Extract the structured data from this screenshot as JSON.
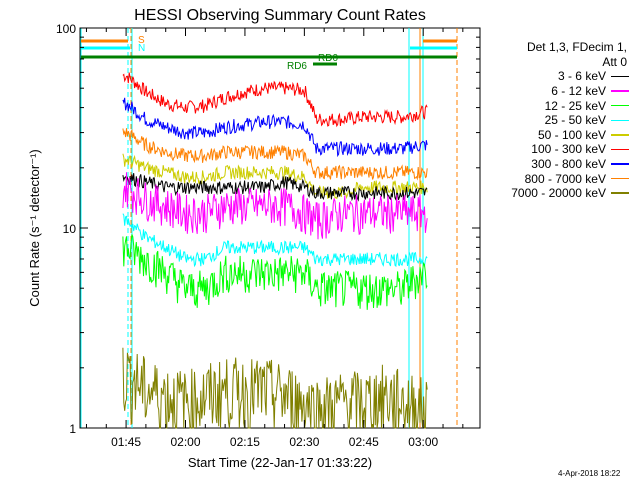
{
  "chart_data": {
    "type": "line",
    "title": "HESSI Observing Summary Count Rates",
    "xlabel": "Start Time (22-Jan-17 01:33:22)",
    "ylabel": "Count Rate (s⁻¹ detector⁻¹)",
    "x_ticks": [
      "01:45",
      "02:00",
      "02:15",
      "02:30",
      "02:45",
      "03:00"
    ],
    "y_ticks": [
      "1",
      "10",
      "100"
    ],
    "y_scale": "log",
    "ylim": [
      1,
      100
    ],
    "xlim": [
      "01:33:22",
      "03:14:20"
    ],
    "grid": false,
    "legend_position": "right",
    "legend_header": [
      "Det 1,3, FDecim 1,",
      "Att 0"
    ],
    "x": [
      "01:45",
      "01:50",
      "01:55",
      "02:00",
      "02:05",
      "02:10",
      "02:15",
      "02:20",
      "02:25",
      "02:30",
      "02:33",
      "02:40",
      "02:45",
      "02:50",
      "02:55",
      "03:00"
    ],
    "series": [
      {
        "name": "3 - 6 keV",
        "color": "#000000",
        "values": [
          18,
          17,
          16,
          16,
          16,
          16,
          16,
          16,
          17,
          16,
          15,
          15,
          15,
          15,
          15,
          15
        ]
      },
      {
        "name": "6 - 12 keV",
        "color": "#ff00ff",
        "values": [
          16,
          14,
          13,
          12,
          12,
          13,
          13,
          13,
          13,
          12,
          11,
          12,
          12,
          12,
          12,
          12
        ]
      },
      {
        "name": "12 - 25 keV",
        "color": "#00ff00",
        "values": [
          8,
          7,
          6,
          5,
          5,
          6,
          6,
          6,
          6,
          6,
          5,
          5,
          5,
          5,
          5,
          6
        ]
      },
      {
        "name": "25 - 50 keV",
        "color": "#00ffff",
        "values": [
          11,
          9,
          8,
          7,
          7,
          8,
          8,
          8,
          8,
          8,
          7,
          7,
          7,
          7,
          7,
          7
        ]
      },
      {
        "name": "50 - 100 keV",
        "color": "#cccc00",
        "values": [
          22,
          20,
          19,
          18,
          18,
          19,
          19,
          19,
          19,
          18,
          15,
          15,
          16,
          16,
          16,
          16
        ]
      },
      {
        "name": "100 - 300 keV",
        "color": "#ff0000",
        "values": [
          58,
          48,
          42,
          40,
          41,
          45,
          48,
          50,
          50,
          49,
          35,
          35,
          36,
          36,
          36,
          38
        ]
      },
      {
        "name": "300 - 800 keV",
        "color": "#0000ff",
        "values": [
          42,
          35,
          32,
          30,
          30,
          32,
          33,
          34,
          34,
          33,
          25,
          25,
          25,
          25,
          25,
          26
        ]
      },
      {
        "name": "800 - 7000 keV",
        "color": "#ff8000",
        "values": [
          30,
          26,
          24,
          23,
          23,
          24,
          24,
          24,
          24,
          23,
          19,
          19,
          19,
          19,
          19,
          19
        ]
      },
      {
        "name": "7000 - 20000 keV",
        "color": "#808000",
        "values": [
          1.8,
          1.5,
          1.4,
          1.3,
          1.4,
          1.5,
          1.5,
          1.5,
          1.4,
          1.3,
          1.2,
          1.3,
          1.3,
          1.4,
          1.3,
          1.2
        ]
      }
    ],
    "annotations": [
      {
        "label": "S",
        "color": "#ff8000"
      },
      {
        "label": "N",
        "color": "#00ffff"
      },
      {
        "label": "RD6",
        "color": "#008000"
      },
      {
        "label": "RD0",
        "color": "#008000"
      }
    ]
  },
  "footer": {
    "timestamp": "4-Apr-2018 18:22"
  }
}
